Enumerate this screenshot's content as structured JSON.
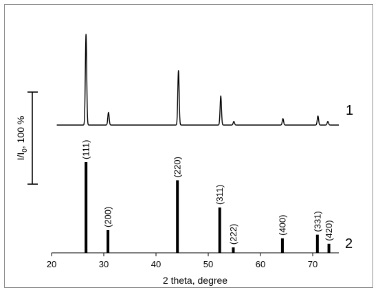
{
  "chart_data": {
    "type": "line",
    "xlabel": "2 theta, degree",
    "ylabel_main": "I/I",
    "ylabel_sub": "0",
    "ylabel_tail": ", 100 %",
    "xlim": [
      20,
      75
    ],
    "x_ticks": [
      20,
      30,
      40,
      50,
      60,
      70
    ],
    "tick_labels": [
      "20",
      "30",
      "40",
      "50",
      "60",
      "70"
    ],
    "grid": false,
    "series": [
      {
        "label": "1",
        "kind": "measured-pattern",
        "peaks": [
          {
            "x": 26.6,
            "y": 100
          },
          {
            "x": 30.9,
            "y": 14
          },
          {
            "x": 44.3,
            "y": 60
          },
          {
            "x": 52.4,
            "y": 32
          },
          {
            "x": 54.9,
            "y": 4
          },
          {
            "x": 64.3,
            "y": 7
          },
          {
            "x": 71.0,
            "y": 10
          },
          {
            "x": 72.9,
            "y": 4
          }
        ]
      },
      {
        "label": "2",
        "kind": "reference-lines",
        "lines": [
          {
            "x": 26.6,
            "y": 100,
            "hkl": "(111)"
          },
          {
            "x": 30.8,
            "y": 25,
            "hkl": "(200)"
          },
          {
            "x": 44.1,
            "y": 80,
            "hkl": "(220)"
          },
          {
            "x": 52.2,
            "y": 50,
            "hkl": "(311)"
          },
          {
            "x": 54.8,
            "y": 6,
            "hkl": "(222)"
          },
          {
            "x": 64.2,
            "y": 16,
            "hkl": "(400)"
          },
          {
            "x": 70.9,
            "y": 20,
            "hkl": "(331)"
          },
          {
            "x": 73.1,
            "y": 10,
            "hkl": "(420)"
          }
        ]
      }
    ]
  }
}
